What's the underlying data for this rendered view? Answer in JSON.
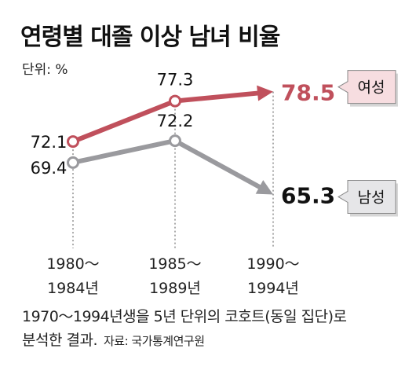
{
  "chart_data": {
    "type": "line",
    "title": "연령별 대졸 이상 남녀 비율",
    "unit": "단위: %",
    "categories": [
      "1980～\n1984년",
      "1985～\n1989년",
      "1990～\n1994년"
    ],
    "categories_lines": [
      [
        "1980～",
        "1984년"
      ],
      [
        "1985～",
        "1989년"
      ],
      [
        "1990～",
        "1994년"
      ]
    ],
    "series": [
      {
        "name": "여성",
        "values": [
          72.1,
          77.3,
          78.5
        ],
        "value_labels": [
          "72.1",
          "77.3",
          "78.5"
        ],
        "color": "#c0505c"
      },
      {
        "name": "남성",
        "values": [
          69.4,
          72.2,
          65.3
        ],
        "value_labels": [
          "69.4",
          "72.2",
          "65.3"
        ],
        "color": "#9a9a9e"
      }
    ],
    "ylim": [
      60,
      82
    ],
    "grid": false
  },
  "colors": {
    "female_badge_bg": "#f7dde0",
    "male_badge_bg": "#e6e6e8",
    "female_highlight": "#c0505c",
    "male_highlight": "#111111"
  },
  "footnote": {
    "line1": "1970～1994년생을 5년 단위의 코호트(동일 집단)로",
    "line2": "분석한 결과.",
    "source": "자료: 국가통계연구원"
  }
}
